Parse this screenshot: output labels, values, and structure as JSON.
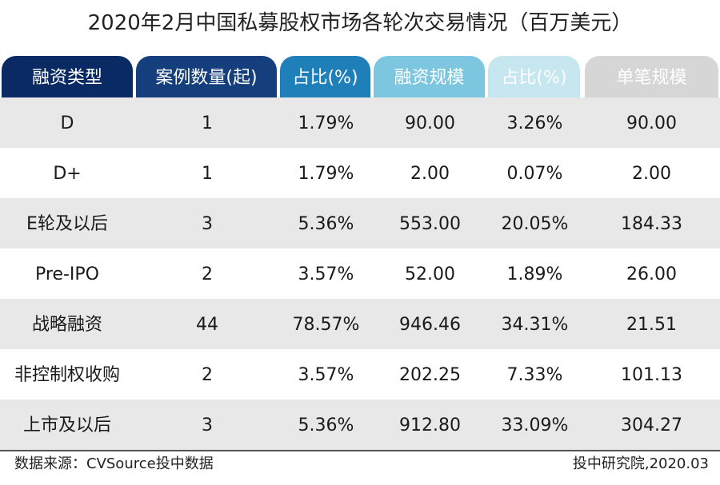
{
  "title": "2020年2月中国私募股权市场各轮次交易情况（百万美元）",
  "colors": {
    "header_colors": [
      "#0a2a63",
      "#143f7c",
      "#1f7fb8",
      "#7cc6e0",
      "#c6e6f0",
      "#d6d6d6"
    ],
    "stripe": "#e8e8e8"
  },
  "chart_data": {
    "type": "table",
    "title": "2020年2月中国私募股权市场各轮次交易情况（百万美元）",
    "columns": [
      "融资类型",
      "案例数量(起)",
      "占比(%)",
      "融资规模",
      "占比(%)",
      "单笔规模"
    ],
    "rows": [
      [
        "D",
        "1",
        "1.79%",
        "90.00",
        "3.26%",
        "90.00"
      ],
      [
        "D+",
        "1",
        "1.79%",
        "2.00",
        "0.07%",
        "2.00"
      ],
      [
        "E轮及以后",
        "3",
        "5.36%",
        "553.00",
        "20.05%",
        "184.33"
      ],
      [
        "Pre-IPO",
        "2",
        "3.57%",
        "52.00",
        "1.89%",
        "26.00"
      ],
      [
        "战略融资",
        "44",
        "78.57%",
        "946.46",
        "34.31%",
        "21.51"
      ],
      [
        "非控制权收购",
        "2",
        "3.57%",
        "202.25",
        "7.33%",
        "101.13"
      ],
      [
        "上市及以后",
        "3",
        "5.36%",
        "912.80",
        "33.09%",
        "304.27"
      ]
    ]
  },
  "footer": {
    "source": "数据来源：CVSource投中数据",
    "credit": "投中研究院,2020.03"
  }
}
